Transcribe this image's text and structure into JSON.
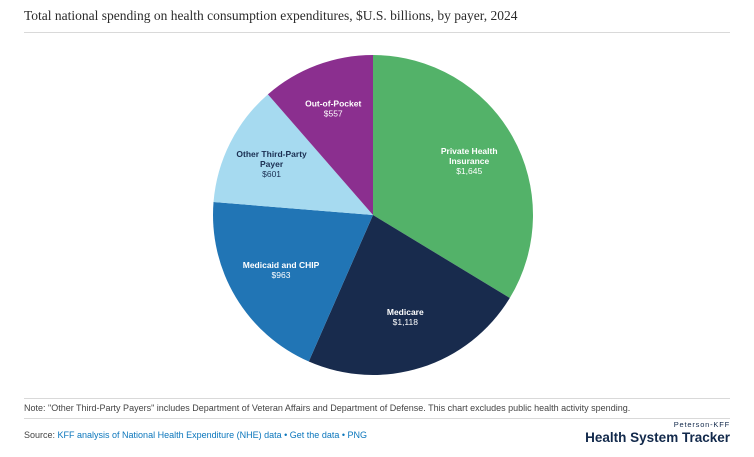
{
  "title": "Total national spending on health consumption expenditures, $U.S. billions, by payer, 2024",
  "chart_data": {
    "type": "pie",
    "title": "Total national spending on health consumption expenditures, $U.S. billions, by payer, 2024",
    "start_angle_deg": 0,
    "direction": "clockwise",
    "legend": "none",
    "total": 4884,
    "slices": [
      {
        "label": "Private Health Insurance",
        "label_lines": [
          "Private Health",
          "Insurance"
        ],
        "value": 1645,
        "value_label": "$1,645",
        "color": "#53b269",
        "text_color": "#ffffff",
        "label_r": 0.69
      },
      {
        "label": "Medicare",
        "label_lines": [
          "Medicare"
        ],
        "value": 1118,
        "value_label": "$1,118",
        "color": "#182b4d",
        "text_color": "#ffffff",
        "label_r": 0.67
      },
      {
        "label": "Medicaid and CHIP",
        "label_lines": [
          "Medicaid and CHIP"
        ],
        "value": 963,
        "value_label": "$963",
        "color": "#2175b5",
        "text_color": "#ffffff",
        "label_r": 0.67
      },
      {
        "label": "Other Third-Party Payer",
        "label_lines": [
          "Other Third-Party",
          "Payer"
        ],
        "value": 601,
        "value_label": "$601",
        "color": "#a6daf0",
        "text_color": "#1b2f52",
        "label_r": 0.71
      },
      {
        "label": "Out-of-Pocket",
        "label_lines": [
          "Out-of-Pocket"
        ],
        "value": 557,
        "value_label": "$557",
        "color": "#8b2f8f",
        "text_color": "#ffffff",
        "label_r": 0.71
      }
    ]
  },
  "note": "Note: \"Other Third-Party Payers\" includes Department of Veteran Affairs and Department of Defense. This chart excludes public health activity spending.",
  "source": {
    "prefix": "Source: ",
    "link1": "KFF analysis of National Health Expenditure (NHE) data",
    "sep1": " • ",
    "link2": "Get the data",
    "sep2": " • ",
    "link3": "PNG"
  },
  "logo": {
    "top": "Peterson-KFF",
    "bottom": "Health System Tracker"
  }
}
